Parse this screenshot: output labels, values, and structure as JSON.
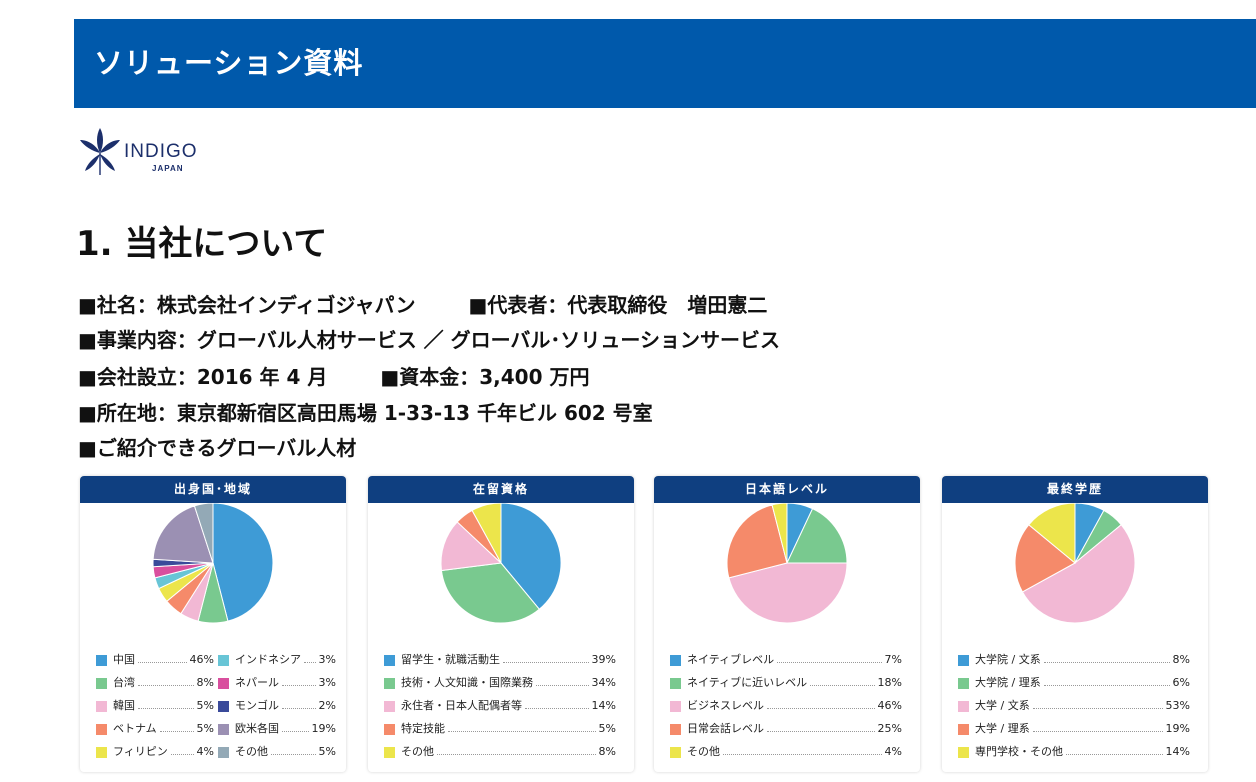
{
  "header": {
    "title": "ソリューション資料"
  },
  "logo": {
    "word": "INDIGO",
    "sub": "JAPAN"
  },
  "section": {
    "title": "1. 当社について"
  },
  "info": {
    "line1_a": "■社名：株式会社インディゴジャパン",
    "line1_b": "■代表者：代表取締役　増田憲二",
    "line2": "■事業内容：グローバル人材サービス ／ グローバル･ソリューションサービス",
    "line3_a": "■会社設立：2016 年 4 月",
    "line3_b": "■資本金：3,400 万円",
    "line4": "■所在地：東京都新宿区高田馬場 1-33-13  千年ビル 602 号室",
    "line5": "■ご紹介できるグローバル人材"
  },
  "colors": {
    "header_blue": "#0059ab",
    "card_header": "#0f3f80"
  },
  "chart_data": [
    {
      "type": "pie",
      "title": "出身国･地域",
      "slices": [
        {
          "label": "中国",
          "value": 46,
          "display": "46%",
          "color": "#3e9bd6"
        },
        {
          "label": "台湾",
          "value": 8,
          "display": "8%",
          "color": "#79c98f"
        },
        {
          "label": "韓国",
          "value": 5,
          "display": "5%",
          "color": "#f2b8d4"
        },
        {
          "label": "ベトナム",
          "value": 5,
          "display": "5%",
          "color": "#f58a6a"
        },
        {
          "label": "フィリピン",
          "value": 4,
          "display": "4%",
          "color": "#ece54b"
        },
        {
          "label": "インドネシア",
          "value": 3,
          "display": "3%",
          "color": "#68c5d6"
        },
        {
          "label": "ネパール",
          "value": 3,
          "display": "3%",
          "color": "#d94f9e"
        },
        {
          "label": "モンゴル",
          "value": 2,
          "display": "2%",
          "color": "#3a4a9a"
        },
        {
          "label": "欧米各国",
          "value": 19,
          "display": "19%",
          "color": "#9b90b3"
        },
        {
          "label": "その他",
          "value": 5,
          "display": "5%",
          "color": "#93a9b6"
        }
      ]
    },
    {
      "type": "pie",
      "title": "在留資格",
      "slices": [
        {
          "label": "留学生・就職活動生",
          "value": 39,
          "display": "39%",
          "color": "#3e9bd6"
        },
        {
          "label": "技術・人文知識・国際業務",
          "value": 34,
          "display": "34%",
          "color": "#79c98f"
        },
        {
          "label": "永住者・日本人配偶者等",
          "value": 14,
          "display": "14%",
          "color": "#f2b8d4"
        },
        {
          "label": "特定技能",
          "value": 5,
          "display": "5%",
          "color": "#f58a6a"
        },
        {
          "label": "その他",
          "value": 8,
          "display": "8%",
          "color": "#ece54b"
        }
      ]
    },
    {
      "type": "pie",
      "title": "日本語レベル",
      "slices": [
        {
          "label": "ネイティブレベル",
          "value": 7,
          "display": "7%",
          "color": "#3e9bd6"
        },
        {
          "label": "ネイティブに近いレベル",
          "value": 18,
          "display": "18%",
          "color": "#79c98f"
        },
        {
          "label": "ビジネスレベル",
          "value": 46,
          "display": "46%",
          "color": "#f2b8d4"
        },
        {
          "label": "日常会話レベル",
          "value": 25,
          "display": "25%",
          "color": "#f58a6a"
        },
        {
          "label": "その他",
          "value": 4,
          "display": "4%",
          "color": "#ece54b"
        }
      ]
    },
    {
      "type": "pie",
      "title": "最終学歴",
      "slices": [
        {
          "label": "大学院 / 文系",
          "value": 8,
          "display": "8%",
          "color": "#3e9bd6"
        },
        {
          "label": "大学院 / 理系",
          "value": 6,
          "display": "6%",
          "color": "#79c98f"
        },
        {
          "label": "大学 / 文系",
          "value": 53,
          "display": "53%",
          "color": "#f2b8d4"
        },
        {
          "label": "大学 / 理系",
          "value": 19,
          "display": "19%",
          "color": "#f58a6a"
        },
        {
          "label": "専門学校・その他",
          "value": 14,
          "display": "14%",
          "color": "#ece54b"
        }
      ]
    }
  ]
}
